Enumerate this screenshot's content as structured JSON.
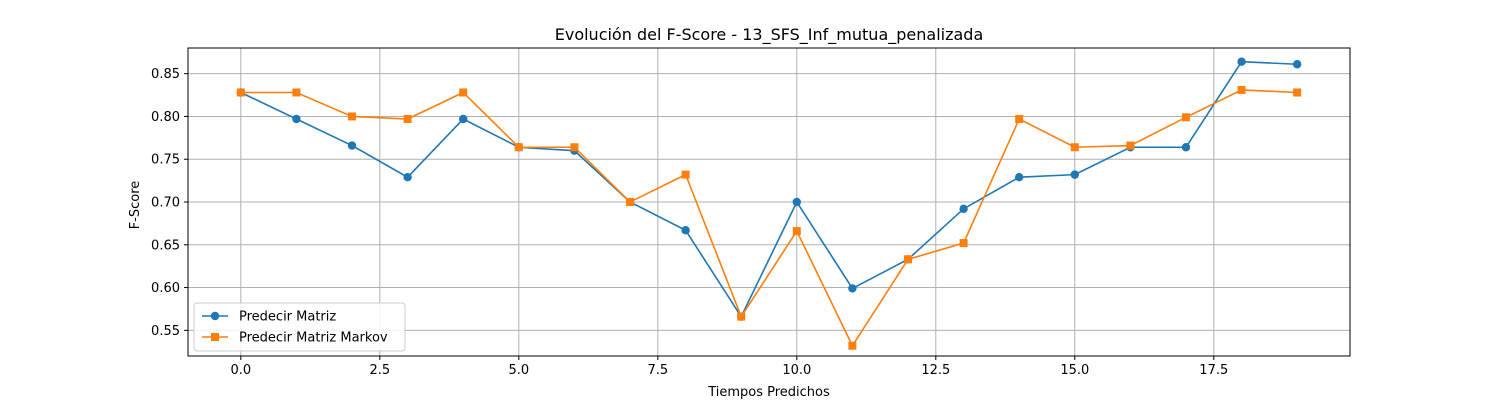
{
  "chart_data": {
    "type": "line",
    "title": "Evolución del F-Score - 13_SFS_Inf_mutua_penalizada",
    "xlabel": "Tiempos Predichos",
    "ylabel": "F-Score",
    "xlim": [
      -0.95,
      19.95
    ],
    "ylim": [
      0.52,
      0.88
    ],
    "xticks": [
      0.0,
      2.5,
      5.0,
      7.5,
      10.0,
      12.5,
      15.0,
      17.5
    ],
    "xtick_labels": [
      "0.0",
      "2.5",
      "5.0",
      "7.5",
      "10.0",
      "12.5",
      "15.0",
      "17.5"
    ],
    "yticks": [
      0.55,
      0.6,
      0.65,
      0.7,
      0.75,
      0.8,
      0.85
    ],
    "ytick_labels": [
      "0.55",
      "0.60",
      "0.65",
      "0.70",
      "0.75",
      "0.80",
      "0.85"
    ],
    "grid": true,
    "legend_position": "lower-left",
    "x": [
      0,
      1,
      2,
      3,
      4,
      5,
      6,
      7,
      8,
      9,
      10,
      11,
      12,
      13,
      14,
      15,
      16,
      17,
      18,
      19
    ],
    "series": [
      {
        "name": "Predecir Matriz",
        "color": "#1f77b4",
        "marker": "circle",
        "values": [
          0.828,
          0.797,
          0.766,
          0.729,
          0.797,
          0.764,
          0.76,
          0.7,
          0.667,
          0.566,
          0.7,
          0.599,
          0.633,
          0.692,
          0.729,
          0.732,
          0.764,
          0.764,
          0.864,
          0.861
        ]
      },
      {
        "name": "Predecir Matriz Markov",
        "color": "#ff7f0e",
        "marker": "square",
        "values": [
          0.828,
          0.828,
          0.8,
          0.797,
          0.828,
          0.764,
          0.764,
          0.7,
          0.732,
          0.566,
          0.666,
          0.532,
          0.633,
          0.652,
          0.797,
          0.764,
          0.766,
          0.799,
          0.831,
          0.828
        ]
      }
    ]
  }
}
